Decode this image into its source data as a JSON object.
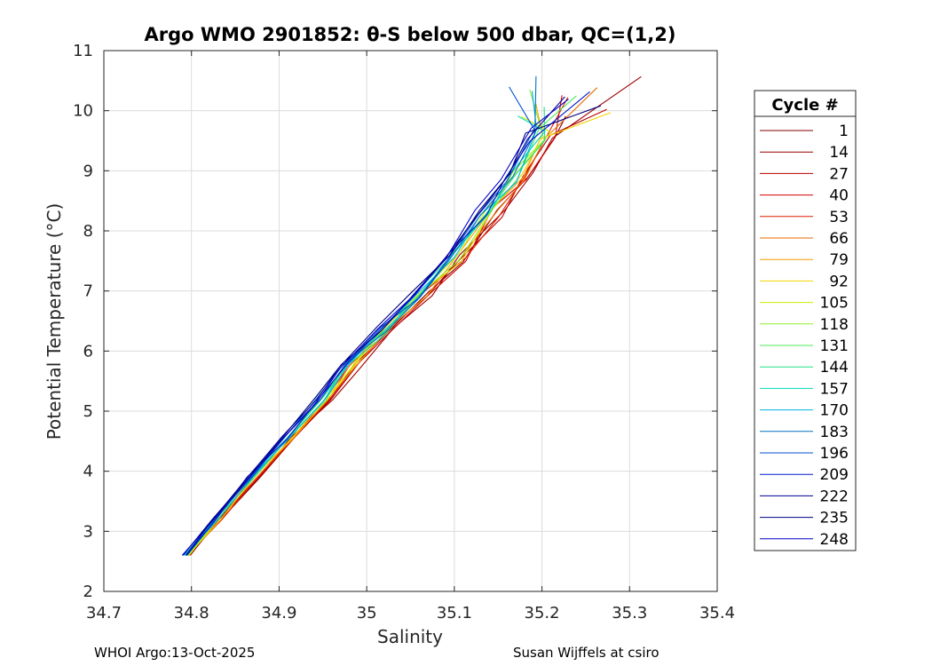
{
  "chart_data": {
    "type": "line",
    "title": "Argo WMO 2901852: θ-S below 500 dbar,  QC=(1,2)",
    "xlabel": "Salinity",
    "ylabel": "Potential Temperature (°C)",
    "xlim": [
      34.7,
      35.4
    ],
    "ylim": [
      2,
      11
    ],
    "xticks": [
      34.7,
      34.8,
      34.9,
      35,
      35.1,
      35.2,
      35.3,
      35.4
    ],
    "xtick_labels": [
      "34.7",
      "34.8",
      "34.9",
      "35",
      "35.1",
      "35.2",
      "35.3",
      "35.4"
    ],
    "yticks": [
      2,
      3,
      4,
      5,
      6,
      7,
      8,
      9,
      10,
      11
    ],
    "ytick_labels": [
      "2",
      "3",
      "4",
      "5",
      "6",
      "7",
      "8",
      "9",
      "10",
      "11"
    ],
    "grid": true,
    "legend_title": "Cycle #",
    "legend_placement": "right-outside",
    "series": [
      {
        "name": "1",
        "color": "#800000"
      },
      {
        "name": "14",
        "color": "#9a0000"
      },
      {
        "name": "27",
        "color": "#b80000"
      },
      {
        "name": "40",
        "color": "#d40000"
      },
      {
        "name": "53",
        "color": "#e01e00"
      },
      {
        "name": "66",
        "color": "#ec6a00"
      },
      {
        "name": "79",
        "color": "#f5a000"
      },
      {
        "name": "92",
        "color": "#f2d400"
      },
      {
        "name": "105",
        "color": "#cfee00"
      },
      {
        "name": "118",
        "color": "#8ff02a"
      },
      {
        "name": "131",
        "color": "#4fe85a"
      },
      {
        "name": "144",
        "color": "#22e08a"
      },
      {
        "name": "157",
        "color": "#00d8c0"
      },
      {
        "name": "170",
        "color": "#00b4e0"
      },
      {
        "name": "183",
        "color": "#0070c0"
      },
      {
        "name": "196",
        "color": "#0050d0"
      },
      {
        "name": "209",
        "color": "#0018d0"
      },
      {
        "name": "222",
        "color": "#000094"
      },
      {
        "name": "235",
        "color": "#000080"
      },
      {
        "name": "248",
        "color": "#0000c8"
      }
    ],
    "profile_shape": {
      "s": [
        34.795,
        34.83,
        34.87,
        34.91,
        34.95,
        34.98,
        35.02,
        35.06,
        35.1,
        35.14,
        35.17,
        35.2,
        35.215
      ],
      "t": [
        2.6,
        3.2,
        3.9,
        4.55,
        5.2,
        5.75,
        6.35,
        6.95,
        7.55,
        8.3,
        8.9,
        9.6,
        10.2
      ]
    }
  },
  "footer": {
    "left": "WHOI Argo:13-Oct-2025",
    "right": "Susan Wijffels at csiro"
  }
}
